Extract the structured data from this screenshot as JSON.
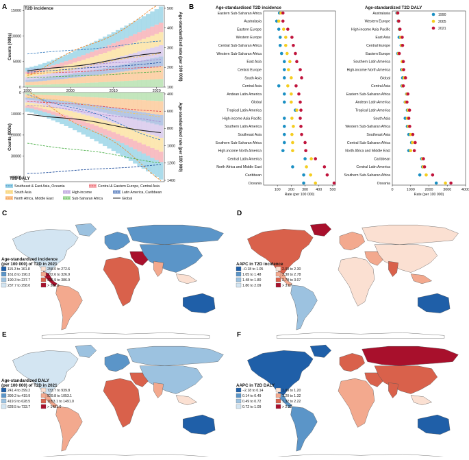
{
  "panels": {
    "A": {
      "letter": "A",
      "top_title": "T2D incidence",
      "bottom_title": "T2D DALY",
      "left_ylabel": "Counts (000s)",
      "right_ylabel_top": "Age-standardized rate (per 100 000)",
      "right_ylabel_bottom": "Age-standardized rate (per 100 000)",
      "x_ticks": [
        "1990",
        "2000",
        "2010",
        "2020"
      ],
      "top_left_ticks": [
        "0",
        "5000",
        "10000",
        "15000"
      ],
      "top_right_ticks": [
        "100",
        "200",
        "300",
        "400",
        "500"
      ],
      "bottom_left_ticks": [
        "0",
        "10000",
        "20000",
        "30000",
        "40000"
      ],
      "bottom_right_ticks": [
        "400",
        "600",
        "800",
        "1000",
        "1200",
        "1400"
      ],
      "legend": [
        {
          "name": "Southeast & East Asia, Oceania",
          "color": "#3a7fc1",
          "fill": "#9ed6e8"
        },
        {
          "name": "Central & Eastern Europe, Central Asia",
          "color": "#e0454f",
          "fill": "#f7b3b8"
        },
        {
          "name": "South Asia",
          "color": "#f5c85a",
          "fill": "#fbe3a4"
        },
        {
          "name": "High-income",
          "color": "#a98ad0",
          "fill": "#d8c9ec"
        },
        {
          "name": "Latin America, Caribbean",
          "color": "#1f4e9c",
          "fill": "#a9bde0"
        },
        {
          "name": "North Africa, Middle East",
          "color": "#f08a2c",
          "fill": "#fbcb9c"
        },
        {
          "name": "Sub-Saharan Africa",
          "color": "#4db04a",
          "fill": "#b9e2b1"
        },
        {
          "name": "Global",
          "color": "#222222",
          "fill": "#222222"
        }
      ]
    },
    "B": {
      "letter": "B",
      "xlabel": "Rate (per 100 000)",
      "legend": [
        {
          "year": "1990",
          "color": "#1a8fc3"
        },
        {
          "year": "2005",
          "color": "#f5cd1f"
        },
        {
          "year": "2021",
          "color": "#c0143c"
        }
      ]
    },
    "C": {
      "letter": "C",
      "legend_title": "Age-standardized incidence (per 100 000) of T2D in 2021",
      "legend_title_1": "Age-standardized incidence",
      "legend_title_2": "(per 100 000) of T2D in 2021",
      "bins": [
        {
          "label": "115.3 to 161.8",
          "color": "#1f5fa8"
        },
        {
          "label": "161.8 to 190.3",
          "color": "#5b95c8"
        },
        {
          "label": "190.3 to 237.7",
          "color": "#9cc2e0"
        },
        {
          "label": "237.7 to 258.0",
          "color": "#d3e5f2"
        },
        {
          "label": "258.0 to 272.6",
          "color": "#fbe0d2"
        },
        {
          "label": "272.6 to 326.9",
          "color": "#f3a98e"
        },
        {
          "label": "326.9 to 386.9",
          "color": "#d9614b"
        },
        {
          "label": "> 386.9",
          "color": "#a8102c"
        }
      ]
    },
    "D": {
      "letter": "D",
      "legend_title": "AAPC in T2D incidence",
      "bins": [
        {
          "label": "−0.18 to 1.05",
          "color": "#1f5fa8"
        },
        {
          "label": "1.05 to 1.48",
          "color": "#5b95c8"
        },
        {
          "label": "1.48 to 1.80",
          "color": "#9cc2e0"
        },
        {
          "label": "1.80 to 2.09",
          "color": "#d3e5f2"
        },
        {
          "label": "2.09 to 2.30",
          "color": "#fbe0d2"
        },
        {
          "label": "2.30 to 2.78",
          "color": "#f3a98e"
        },
        {
          "label": "2.78 to 3.07",
          "color": "#d9614b"
        },
        {
          "label": "> 3.07",
          "color": "#a8102c"
        }
      ]
    },
    "E": {
      "letter": "E",
      "legend_title": "Age-standardized DALY (per 100 000) of T2D in 2021",
      "legend_title_1": "Age-standardized DALY",
      "legend_title_2": "(per 100 000) of T2D in 2021",
      "bins": [
        {
          "label": "241.4 to 399.2",
          "color": "#1f5fa8"
        },
        {
          "label": "399.2 to 419.9",
          "color": "#5b95c8"
        },
        {
          "label": "419.9 to 628.5",
          "color": "#9cc2e0"
        },
        {
          "label": "628.5 to 733.7",
          "color": "#d3e5f2"
        },
        {
          "label": "733.7 to 939.8",
          "color": "#fbe0d2"
        },
        {
          "label": "939.8 to 1053.1",
          "color": "#f3a98e"
        },
        {
          "label": "1053.1 to 1491.0",
          "color": "#d9614b"
        },
        {
          "label": "> 1491.0",
          "color": "#a8102c"
        }
      ]
    },
    "F": {
      "letter": "F",
      "legend_title": "AAPC in T2D DALY",
      "bins": [
        {
          "label": "−2.18 to 0.14",
          "color": "#1f5fa8"
        },
        {
          "label": "0.14 to 0.49",
          "color": "#5b95c8"
        },
        {
          "label": "0.49 to 0.72",
          "color": "#9cc2e0"
        },
        {
          "label": "0.72 to 1.09",
          "color": "#d3e5f2"
        },
        {
          "label": "1.09 to 1.20",
          "color": "#fbe0d2"
        },
        {
          "label": "1.20 to 1.32",
          "color": "#f3a98e"
        },
        {
          "label": "1.32 to 2.22",
          "color": "#d9614b"
        },
        {
          "label": "> 2.22",
          "color": "#a8102c"
        }
      ]
    }
  },
  "chart_data": [
    {
      "type": "line",
      "title": "T2D incidence",
      "xlabel": "",
      "ylabel": "Counts (000s)",
      "ylabel_right": "Age-standardized rate (per 100 000)",
      "x": [
        1990,
        2021
      ],
      "xlim": [
        1990,
        2021
      ],
      "ylim": [
        0,
        16000
      ],
      "ylim_right": [
        100,
        500
      ],
      "series": [
        {
          "name": "Southeast & East Asia, Oceania",
          "values": [
            6500,
            9000
          ]
        },
        {
          "name": "Central & Eastern Europe, Central Asia",
          "values": [
            2600,
            4000
          ]
        },
        {
          "name": "South Asia",
          "values": [
            2300,
            6800
          ]
        },
        {
          "name": "High-income",
          "values": [
            3500,
            5500
          ]
        },
        {
          "name": "Latin America, Caribbean",
          "values": [
            3000,
            4800
          ]
        },
        {
          "name": "North Africa, Middle East",
          "values": [
            2700,
            16000
          ]
        },
        {
          "name": "Sub-Saharan Africa",
          "values": [
            1800,
            3000
          ]
        },
        {
          "name": "Global",
          "values": [
            3100,
            6800
          ]
        }
      ]
    },
    {
      "type": "line",
      "title": "T2D DALY",
      "xlabel": "",
      "ylabel": "Counts (000s)",
      "ylabel_right": "Age-standardized rate (per 100 000)",
      "x": [
        1990,
        2021
      ],
      "xlim": [
        1990,
        2021
      ],
      "ylim": [
        0,
        42000
      ],
      "ylim_right": [
        400,
        1400
      ],
      "y_reversed": true,
      "series": [
        {
          "name": "Southeast & East Asia, Oceania",
          "values": [
            1000,
            22000
          ]
        },
        {
          "name": "Central & Eastern Europe, Central Asia",
          "values": [
            4000,
            9000
          ]
        },
        {
          "name": "South Asia",
          "values": [
            2000,
            12000
          ]
        },
        {
          "name": "High-income",
          "values": [
            6000,
            14000
          ]
        },
        {
          "name": "Latin America, Caribbean",
          "values": [
            38000,
            34000
          ]
        },
        {
          "name": "North Africa, Middle East",
          "values": [
            1000,
            40000
          ]
        },
        {
          "name": "Sub-Saharan Africa",
          "values": [
            24000,
            33000
          ]
        },
        {
          "name": "Global",
          "values": [
            10000,
            19000
          ]
        }
      ]
    },
    {
      "type": "scatter",
      "title": "Age-standardised T2D incidence",
      "xlabel": "Rate (per 100 000)",
      "xlim": [
        0,
        520
      ],
      "x_ticks": [
        100,
        200,
        300,
        400,
        500
      ],
      "categories": [
        "Eastern Sub-Saharan Africa",
        "Australasia",
        "Eastern Europe",
        "Western Europe",
        "Central Sub-Saharan Africa",
        "Western Sub-Saharan Africa",
        "East Asia",
        "Central Europe",
        "South Asia",
        "Central Asia",
        "Andean Latin America",
        "Global",
        "Tropical Latin America",
        "High-income Asia Pacific",
        "Southern Latin America",
        "Southeast Asia",
        "Southern Sub-Saharan Africa",
        "High-income North America",
        "Central Latin America",
        "North Africa and Middle East",
        "Caribbean",
        "Oceania"
      ],
      "series": [
        {
          "name": "1990",
          "values": [
            115,
            95,
            110,
            120,
            120,
            130,
            150,
            150,
            150,
            110,
            150,
            150,
            230,
            150,
            150,
            150,
            150,
            140,
            300,
            210,
            290,
            290
          ]
        },
        {
          "name": "2005",
          "values": [
            125,
            110,
            145,
            160,
            160,
            170,
            190,
            180,
            200,
            175,
            200,
            200,
            240,
            205,
            215,
            205,
            210,
            210,
            345,
            310,
            340,
            375
          ]
        },
        {
          "name": "2021",
          "values": [
            140,
            140,
            175,
            205,
            215,
            230,
            240,
            265,
            275,
            235,
            255,
            265,
            270,
            265,
            270,
            275,
            300,
            305,
            375,
            440,
            460,
            510
          ]
        }
      ]
    },
    {
      "type": "scatter",
      "title": "Age-standardized T2D DALY",
      "xlabel": "Rate (per 100 000)",
      "xlim": [
        0,
        4000
      ],
      "x_ticks": [
        0,
        1000,
        2000,
        3000,
        4000
      ],
      "categories": [
        "Australasia",
        "Western Europe",
        "High-income Asia Pacific",
        "East Asia",
        "Central Europe",
        "Eastern Europe",
        "Southern Latin America",
        "High-income North America",
        "Global",
        "Central Asia",
        "Eastern Sub-Saharan Africa",
        "Andean Latin America",
        "Tropical Latin America",
        "South Asia",
        "Western Sub-Saharan Africa",
        "Southeast Asia",
        "Central Sub-Saharan Africa",
        "North Africa and Middle East",
        "Caribbean",
        "Central Latin America",
        "Southern Sub-Saharan Africa",
        "Oceania"
      ],
      "series": [
        {
          "name": "1990",
          "values": [
            250,
            320,
            380,
            370,
            480,
            300,
            540,
            500,
            560,
            520,
            780,
            700,
            820,
            700,
            820,
            900,
            1050,
            900,
            1600,
            1650,
            1500,
            2400
          ]
        },
        {
          "name": "2005",
          "values": [
            280,
            340,
            400,
            460,
            500,
            340,
            540,
            560,
            640,
            560,
            800,
            720,
            860,
            820,
            880,
            1000,
            1100,
            1000,
            1650,
            1680,
            1850,
            2900
          ]
        },
        {
          "name": "2021",
          "values": [
            300,
            350,
            420,
            540,
            560,
            380,
            600,
            620,
            720,
            600,
            850,
            800,
            940,
            900,
            950,
            1120,
            1250,
            1200,
            1700,
            1760,
            2200,
            3200
          ]
        }
      ]
    }
  ]
}
